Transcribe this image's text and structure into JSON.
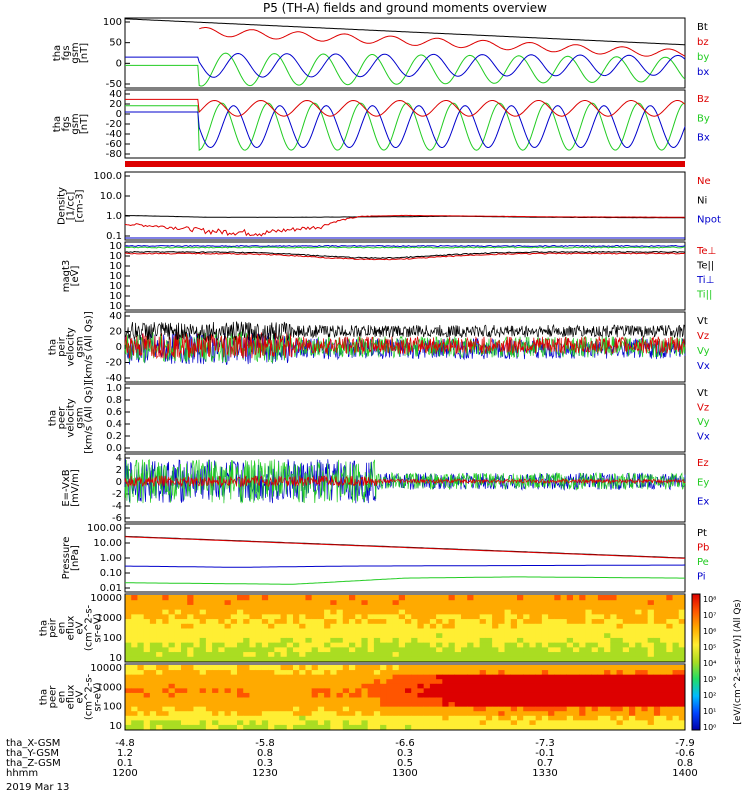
{
  "title": "P5 (TH-A) fields and ground moments overview",
  "colors": {
    "black": "#000000",
    "red": "#dd0000",
    "green": "#22cc22",
    "blue": "#0000cc"
  },
  "chart_data": [
    {
      "type": "line",
      "panel": "fgs_gsm_1",
      "ylabel": [
        "tha",
        "fgs",
        "gsm",
        "[nT]"
      ],
      "ylim": [
        -60,
        110
      ],
      "yticks": [
        "100",
        "50",
        "0",
        "-50"
      ],
      "ytick_values": [
        100,
        50,
        0,
        -50
      ],
      "legend": [
        {
          "name": "Bt",
          "color": "black"
        },
        {
          "name": "bz",
          "color": "red"
        },
        {
          "name": "by",
          "color": "green"
        },
        {
          "name": "bx",
          "color": "blue"
        }
      ],
      "series": [
        {
          "name": "Bt",
          "color": "black",
          "x": [
            0,
            20,
            40,
            60,
            80,
            100,
            120,
            140,
            160,
            180,
            200
          ],
          "y": [
            108,
            102,
            95,
            88,
            81,
            74,
            68,
            62,
            55,
            50,
            45
          ]
        },
        {
          "name": "bz",
          "color": "red",
          "note": "oscillating below Bt"
        },
        {
          "name": "by",
          "color": "green",
          "note": "sinusoid amplitude ~45 nT, mean ~-15"
        },
        {
          "name": "bx",
          "color": "blue",
          "note": "step 15 to -35 at 1226, then sinusoid"
        }
      ]
    },
    {
      "type": "line",
      "panel": "fgs_gsm_2",
      "ylabel": [
        "tha",
        "fgs",
        "gsm",
        "[nT]"
      ],
      "ylim": [
        -90,
        40
      ],
      "yticks": [
        "40",
        "20",
        "0",
        "-20",
        "-40",
        "-60",
        "-80"
      ],
      "ytick_values": [
        40,
        20,
        0,
        -20,
        -40,
        -60,
        -80
      ],
      "legend": [
        {
          "name": "Bz",
          "color": "red"
        },
        {
          "name": "By",
          "color": "green"
        },
        {
          "name": "Bx",
          "color": "blue"
        }
      ]
    },
    {
      "type": "line",
      "panel": "density",
      "ylabel": [
        "Density",
        "[1/cc]",
        "[cm-3]"
      ],
      "scale": "log",
      "yticks": [
        "100.0",
        "10.0",
        "1.0",
        "0.1"
      ],
      "legend": [
        {
          "name": "Ne",
          "color": "red"
        },
        {
          "name": "Ni",
          "color": "black"
        },
        {
          "name": "Npot",
          "color": "blue"
        }
      ],
      "series": [
        {
          "name": "Ni",
          "color": "black",
          "x": [
            0,
            30,
            60,
            90,
            120,
            150,
            200
          ],
          "y": [
            1.0,
            0.8,
            0.8,
            0.85,
            0.9,
            0.8,
            0.75
          ]
        },
        {
          "name": "Ne",
          "color": "red",
          "x": [
            0,
            30,
            50,
            70,
            85,
            100,
            150,
            200
          ],
          "y": [
            0.35,
            0.15,
            0.12,
            0.25,
            0.9,
            1.0,
            0.85,
            0.8
          ]
        }
      ]
    },
    {
      "type": "line",
      "panel": "temperature",
      "ylabel": [
        "magt3",
        "[eV]"
      ],
      "scale": "log",
      "yticks": [
        "10",
        "10",
        "10",
        "10",
        "10",
        "10",
        "10"
      ],
      "legend": [
        {
          "name": "Te⊥",
          "color": "red"
        },
        {
          "name": "Te||",
          "color": "black"
        },
        {
          "name": "Ti⊥",
          "color": "blue"
        },
        {
          "name": "Ti||",
          "color": "green"
        }
      ]
    },
    {
      "type": "line",
      "panel": "peir_velocity",
      "ylabel": [
        "tha",
        "peir",
        "velocity",
        "gsm",
        "[km/s (All Qs)]"
      ],
      "ylim": [
        -40,
        40
      ],
      "yticks": [
        "40",
        "20",
        "0",
        "-20",
        "-40"
      ],
      "legend": [
        {
          "name": "Vt",
          "color": "black"
        },
        {
          "name": "Vz",
          "color": "red"
        },
        {
          "name": "Vy",
          "color": "green"
        },
        {
          "name": "Vx",
          "color": "blue"
        }
      ]
    },
    {
      "type": "line",
      "panel": "peer_velocity",
      "ylabel": [
        "tha",
        "peer",
        "velocity",
        "gsm",
        "[km/s (All Qs)]"
      ],
      "ylim": [
        0,
        1
      ],
      "yticks": [
        "1.0",
        "0.8",
        "0.6",
        "0.4",
        "0.2",
        "0.0"
      ],
      "legend": [
        {
          "name": "Vt",
          "color": "black"
        },
        {
          "name": "Vz",
          "color": "red"
        },
        {
          "name": "Vy",
          "color": "green"
        },
        {
          "name": "Vx",
          "color": "blue"
        }
      ]
    },
    {
      "type": "line",
      "panel": "efield",
      "ylabel": [
        "E=-VxB",
        "[mV/m]"
      ],
      "ylim": [
        -6,
        4
      ],
      "yticks": [
        "4",
        "2",
        "0",
        "-2",
        "-4",
        "-6"
      ],
      "legend": [
        {
          "name": "Ez",
          "color": "red"
        },
        {
          "name": "Ey",
          "color": "green"
        },
        {
          "name": "Ex",
          "color": "blue"
        }
      ]
    },
    {
      "type": "line",
      "panel": "pressure",
      "ylabel": [
        "Pressure",
        "[nPa]"
      ],
      "scale": "log",
      "yticks": [
        "100.00",
        "10.00",
        "1.00",
        "0.10",
        "0.01"
      ],
      "legend": [
        {
          "name": "Pt",
          "color": "black"
        },
        {
          "name": "Pb",
          "color": "red"
        },
        {
          "name": "Pe",
          "color": "green"
        },
        {
          "name": "Pi",
          "color": "blue"
        }
      ],
      "series": [
        {
          "name": "Pt",
          "color": "black",
          "x": [
            0,
            200
          ],
          "y": [
            25,
            1.0
          ]
        },
        {
          "name": "Pi",
          "color": "blue",
          "x": [
            0,
            40,
            80,
            200
          ],
          "y": [
            0.3,
            0.25,
            0.3,
            0.35
          ]
        },
        {
          "name": "Pe",
          "color": "green",
          "x": [
            0,
            60,
            100,
            140,
            200
          ],
          "y": [
            0.025,
            0.02,
            0.05,
            0.06,
            0.05
          ]
        }
      ]
    },
    {
      "type": "heatmap",
      "panel": "peir_en_eflux",
      "ylabel": [
        "tha",
        "peir",
        "en",
        "eflux",
        "eV",
        "(cm^2-s-",
        "sr-eV)"
      ],
      "yticks": [
        "10000",
        "1000",
        "100",
        "10"
      ],
      "scale": "log"
    },
    {
      "type": "heatmap",
      "panel": "peer_en_eflux",
      "ylabel": [
        "tha",
        "peer",
        "en",
        "eflux",
        "eV",
        "(cm^2-s-",
        "sr-eV)"
      ],
      "yticks": [
        "10000",
        "1000",
        "100",
        "10"
      ],
      "scale": "log",
      "colorbar": {
        "label": "[eV/(cm^2-s-sr-eV)] (All Qs)",
        "ticks": [
          "10⁸",
          "10⁷",
          "10⁶",
          "10⁵",
          "10⁴",
          "10³",
          "10²",
          "10¹",
          "10⁰"
        ]
      }
    }
  ],
  "xaxis": {
    "rows": [
      {
        "label": "tha_X-GSM",
        "values": [
          "-4.8",
          "-5.8",
          "-6.6",
          "-7.3",
          "-7.9"
        ]
      },
      {
        "label": "tha_Y-GSM",
        "values": [
          "1.2",
          "0.8",
          "0.3",
          "-0.1",
          "-0.6"
        ]
      },
      {
        "label": "tha_Z-GSM",
        "values": [
          "0.1",
          "0.3",
          "0.5",
          "0.7",
          "0.8"
        ]
      },
      {
        "label": "hhmm",
        "values": [
          "1200",
          "1230",
          "1300",
          "1330",
          "1400"
        ]
      }
    ],
    "date": "2019 Mar 13"
  }
}
